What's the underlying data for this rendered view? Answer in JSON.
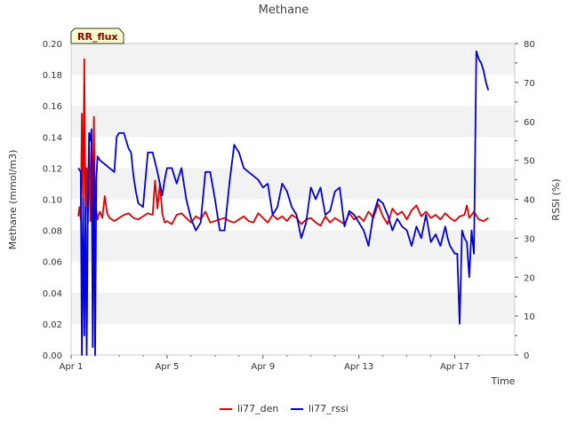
{
  "chart_data": {
    "type": "line",
    "title": "Methane",
    "badge": "RR_flux",
    "xlabel": "Time",
    "ylabel": "Methane (mmol/m3)",
    "y2label": "RSSI (%)",
    "xlim": [
      0,
      18.5
    ],
    "ylim": [
      0,
      0.2
    ],
    "y2lim": [
      0,
      80
    ],
    "xticks": [
      {
        "value": 0,
        "label": "Apr 1"
      },
      {
        "value": 4,
        "label": "Apr 5"
      },
      {
        "value": 8,
        "label": "Apr 9"
      },
      {
        "value": 12,
        "label": "Apr 13"
      },
      {
        "value": 16,
        "label": "Apr 17"
      }
    ],
    "yticks": [
      "0.00",
      "0.02",
      "0.04",
      "0.06",
      "0.08",
      "0.10",
      "0.12",
      "0.14",
      "0.16",
      "0.18",
      "0.20"
    ],
    "y2ticks": [
      "0",
      "10",
      "20",
      "30",
      "40",
      "50",
      "60",
      "70",
      "80"
    ],
    "grid": "horizontal bands",
    "legend_position": "bottom-center",
    "series": [
      {
        "name": "li77_den",
        "axis": "left",
        "color": "#e00000",
        "x": [
          0.3,
          0.35,
          0.4,
          0.45,
          0.5,
          0.55,
          0.6,
          0.65,
          0.7,
          0.75,
          0.8,
          0.85,
          0.9,
          0.95,
          1.0,
          1.05,
          1.1,
          1.15,
          1.2,
          1.3,
          1.4,
          1.5,
          1.6,
          1.7,
          1.8,
          2.0,
          2.2,
          2.4,
          2.6,
          2.8,
          3.0,
          3.2,
          3.4,
          3.5,
          3.6,
          3.7,
          3.8,
          3.9,
          4.0,
          4.2,
          4.4,
          4.6,
          4.8,
          5.0,
          5.2,
          5.4,
          5.6,
          5.8,
          6.0,
          6.2,
          6.4,
          6.6,
          6.8,
          7.0,
          7.2,
          7.4,
          7.6,
          7.8,
          8.0,
          8.2,
          8.4,
          8.6,
          8.8,
          9.0,
          9.2,
          9.4,
          9.6,
          9.8,
          10.0,
          10.2,
          10.4,
          10.6,
          10.8,
          11.0,
          11.2,
          11.4,
          11.6,
          11.8,
          12.0,
          12.2,
          12.4,
          12.6,
          12.8,
          13.0,
          13.2,
          13.4,
          13.6,
          13.8,
          14.0,
          14.2,
          14.4,
          14.6,
          14.8,
          15.0,
          15.2,
          15.4,
          15.6,
          15.8,
          16.0,
          16.2,
          16.4,
          16.5,
          16.6,
          16.8,
          17.0,
          17.2,
          17.4
        ],
        "values": [
          0.089,
          0.095,
          0.087,
          0.155,
          0.09,
          0.19,
          0.087,
          0.12,
          0.085,
          0.135,
          0.086,
          0.14,
          0.09,
          0.153,
          0.088,
          0.093,
          0.087,
          0.09,
          0.092,
          0.088,
          0.102,
          0.091,
          0.088,
          0.087,
          0.086,
          0.088,
          0.09,
          0.091,
          0.088,
          0.087,
          0.089,
          0.091,
          0.09,
          0.112,
          0.094,
          0.11,
          0.091,
          0.085,
          0.086,
          0.084,
          0.09,
          0.091,
          0.088,
          0.085,
          0.089,
          0.087,
          0.092,
          0.085,
          0.086,
          0.087,
          0.088,
          0.086,
          0.085,
          0.087,
          0.089,
          0.086,
          0.085,
          0.091,
          0.088,
          0.085,
          0.09,
          0.087,
          0.089,
          0.086,
          0.09,
          0.088,
          0.084,
          0.087,
          0.088,
          0.085,
          0.083,
          0.089,
          0.085,
          0.088,
          0.086,
          0.084,
          0.091,
          0.087,
          0.089,
          0.086,
          0.092,
          0.088,
          0.097,
          0.089,
          0.084,
          0.094,
          0.09,
          0.092,
          0.087,
          0.093,
          0.096,
          0.089,
          0.092,
          0.088,
          0.09,
          0.087,
          0.091,
          0.088,
          0.086,
          0.089,
          0.09,
          0.096,
          0.088,
          0.092,
          0.087,
          0.086,
          0.088
        ]
      },
      {
        "name": "li77_rssi",
        "axis": "right",
        "color": "#0000e0",
        "x": [
          0.3,
          0.4,
          0.45,
          0.5,
          0.55,
          0.6,
          0.65,
          0.7,
          0.75,
          0.8,
          0.85,
          0.9,
          0.95,
          1.0,
          1.05,
          1.1,
          1.2,
          1.4,
          1.6,
          1.8,
          1.9,
          2.0,
          2.2,
          2.4,
          2.5,
          2.6,
          2.7,
          2.8,
          3.0,
          3.2,
          3.4,
          3.6,
          3.8,
          3.9,
          4.0,
          4.2,
          4.4,
          4.6,
          4.8,
          5.0,
          5.2,
          5.4,
          5.6,
          5.8,
          6.0,
          6.2,
          6.4,
          6.5,
          6.6,
          6.8,
          7.0,
          7.2,
          7.4,
          7.6,
          7.8,
          8.0,
          8.2,
          8.4,
          8.6,
          8.8,
          9.0,
          9.2,
          9.4,
          9.6,
          9.8,
          10.0,
          10.2,
          10.4,
          10.6,
          10.8,
          11.0,
          11.2,
          11.4,
          11.6,
          11.8,
          12.0,
          12.2,
          12.4,
          12.6,
          12.8,
          13.0,
          13.2,
          13.4,
          13.6,
          13.8,
          14.0,
          14.2,
          14.4,
          14.6,
          14.8,
          15.0,
          15.2,
          15.4,
          15.6,
          15.7,
          15.8,
          15.9,
          16.0,
          16.1,
          16.2,
          16.3,
          16.4,
          16.5,
          16.6,
          16.7,
          16.8,
          16.9,
          17.0,
          17.1,
          17.2,
          17.3,
          17.4
        ],
        "values": [
          48,
          47,
          0,
          40,
          5,
          38,
          0,
          40,
          57,
          55,
          58,
          2,
          50,
          0,
          45,
          51,
          50,
          49,
          48,
          47,
          56,
          57,
          57,
          53,
          52,
          46,
          42,
          39,
          38,
          52,
          52,
          47,
          41,
          45,
          48,
          48,
          44,
          48,
          40,
          35,
          32,
          34,
          47,
          47,
          40,
          32,
          32,
          38,
          44,
          54,
          52,
          48,
          47,
          46,
          45,
          43,
          44,
          36,
          38,
          44,
          42,
          38,
          36,
          30,
          34,
          43,
          40,
          43,
          36,
          37,
          42,
          43,
          33,
          37,
          36,
          34,
          32,
          28,
          36,
          40,
          39,
          36,
          32,
          35,
          33,
          32,
          28,
          33,
          30,
          36,
          29,
          31,
          28,
          33,
          30,
          28,
          27,
          26,
          26,
          8,
          32,
          30,
          29,
          20,
          32,
          26,
          78,
          76,
          75,
          73,
          70,
          68
        ]
      }
    ],
    "legend": [
      {
        "name": "li77_den",
        "color": "#e00000"
      },
      {
        "name": "li77_rssi",
        "color": "#0000e0"
      }
    ]
  }
}
